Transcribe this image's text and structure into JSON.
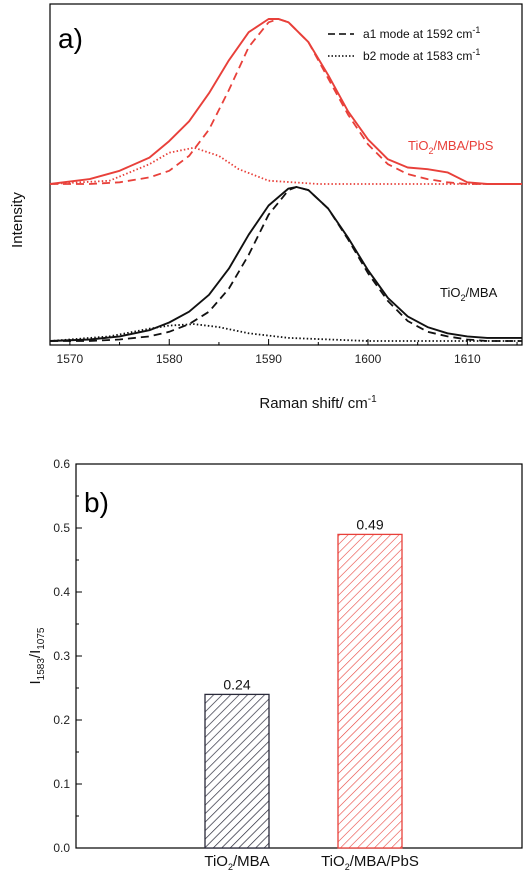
{
  "chart_data": [
    {
      "type": "line",
      "panel_label": "a)",
      "xlabel": "Raman shift/ cm",
      "xlabel_sup": "-1",
      "ylabel": "Intensity",
      "xlim": [
        1568,
        1615.5
      ],
      "xticks": [
        1570,
        1580,
        1590,
        1600,
        1610
      ],
      "colors": {
        "red": "#e8403a",
        "black": "#111111"
      },
      "legend": {
        "placement": "top-right",
        "entries": [
          {
            "style": "dashed",
            "text": "a1 mode at 1592 cm",
            "sup": "-1"
          },
          {
            "style": "dotted",
            "text": "b2 mode at 1583 cm",
            "sup": "-1"
          }
        ]
      },
      "samples": [
        {
          "name_parts": [
            "TiO",
            "2",
            "/MBA/PbS"
          ],
          "color": "#e8403a",
          "series": [
            {
              "style": "solid",
              "x": [
                1568,
                1572,
                1575,
                1578,
                1580,
                1582,
                1584,
                1586,
                1588,
                1590,
                1591,
                1592,
                1594,
                1596,
                1598,
                1600,
                1602,
                1604,
                1606,
                1608,
                1610,
                1612,
                1615.5
              ],
              "y": [
                0.0,
                0.03,
                0.08,
                0.16,
                0.26,
                0.38,
                0.55,
                0.75,
                0.92,
                1.0,
                1.0,
                0.98,
                0.86,
                0.66,
                0.44,
                0.27,
                0.15,
                0.1,
                0.09,
                0.07,
                0.01,
                0.0,
                0.0
              ]
            },
            {
              "style": "dashed",
              "x": [
                1568,
                1572,
                1575,
                1578,
                1580,
                1582,
                1584,
                1586,
                1588,
                1590,
                1591,
                1592,
                1594,
                1596,
                1598,
                1600,
                1602,
                1604,
                1606,
                1608,
                1610,
                1612,
                1615.5
              ],
              "y": [
                0.0,
                0.0,
                0.01,
                0.04,
                0.08,
                0.17,
                0.33,
                0.57,
                0.83,
                0.98,
                1.0,
                0.98,
                0.86,
                0.64,
                0.42,
                0.24,
                0.12,
                0.06,
                0.03,
                0.01,
                0.0,
                0.0,
                0.0
              ]
            },
            {
              "style": "dotted",
              "x": [
                1568,
                1574,
                1578,
                1580,
                1582.5,
                1585,
                1587,
                1590,
                1595,
                1615.5
              ],
              "y": [
                0.0,
                0.02,
                0.12,
                0.19,
                0.22,
                0.17,
                0.09,
                0.02,
                0.0,
                0.0
              ]
            }
          ]
        },
        {
          "name_parts": [
            "TiO",
            "2",
            "/MBA"
          ],
          "color": "#111111",
          "series": [
            {
              "style": "solid",
              "x": [
                1568,
                1572,
                1575,
                1578,
                1580,
                1582,
                1584,
                1586,
                1588,
                1590,
                1592,
                1592.8,
                1594,
                1596,
                1598,
                1600,
                1602,
                1604,
                1606,
                1608,
                1610,
                1612,
                1615.5
              ],
              "y": [
                0.0,
                0.01,
                0.03,
                0.07,
                0.12,
                0.19,
                0.3,
                0.47,
                0.69,
                0.88,
                0.99,
                1.0,
                0.98,
                0.86,
                0.67,
                0.46,
                0.28,
                0.16,
                0.09,
                0.05,
                0.03,
                0.02,
                0.02
              ]
            },
            {
              "style": "dashed",
              "x": [
                1568,
                1572,
                1575,
                1578,
                1580,
                1582,
                1584,
                1586,
                1588,
                1590,
                1592,
                1592.8,
                1594,
                1596,
                1598,
                1600,
                1602,
                1604,
                1606,
                1608,
                1610,
                1612,
                1615.5
              ],
              "y": [
                0.0,
                0.0,
                0.01,
                0.03,
                0.06,
                0.11,
                0.19,
                0.34,
                0.56,
                0.82,
                0.98,
                1.0,
                0.98,
                0.86,
                0.66,
                0.44,
                0.26,
                0.13,
                0.06,
                0.03,
                0.01,
                0.0,
                0.0
              ]
            },
            {
              "style": "dotted",
              "x": [
                1568,
                1574,
                1578,
                1580,
                1582.5,
                1585,
                1588,
                1592,
                1600,
                1615.5
              ],
              "y": [
                0.0,
                0.03,
                0.08,
                0.1,
                0.11,
                0.09,
                0.05,
                0.02,
                0.0,
                0.0
              ]
            }
          ]
        }
      ]
    },
    {
      "type": "bar",
      "panel_label": "b)",
      "ylabel_main": "I",
      "ylabel_sub1": "1583",
      "ylabel_sep": "/I",
      "ylabel_sub2": "1075",
      "ylim": [
        0.0,
        0.6
      ],
      "yticks": [
        "0.0",
        "0.1",
        "0.2",
        "0.3",
        "0.4",
        "0.5",
        "0.6"
      ],
      "categories": [
        {
          "parts": [
            "TiO",
            "2",
            "/MBA"
          ]
        },
        {
          "parts": [
            "TiO",
            "2",
            "/MBA/PbS"
          ]
        }
      ],
      "values": [
        0.24,
        0.49
      ],
      "value_labels": [
        "0.24",
        "0.49"
      ],
      "colors": [
        "#2a2a3a",
        "#e8403a"
      ],
      "fill": "diagonal-hatch"
    }
  ]
}
